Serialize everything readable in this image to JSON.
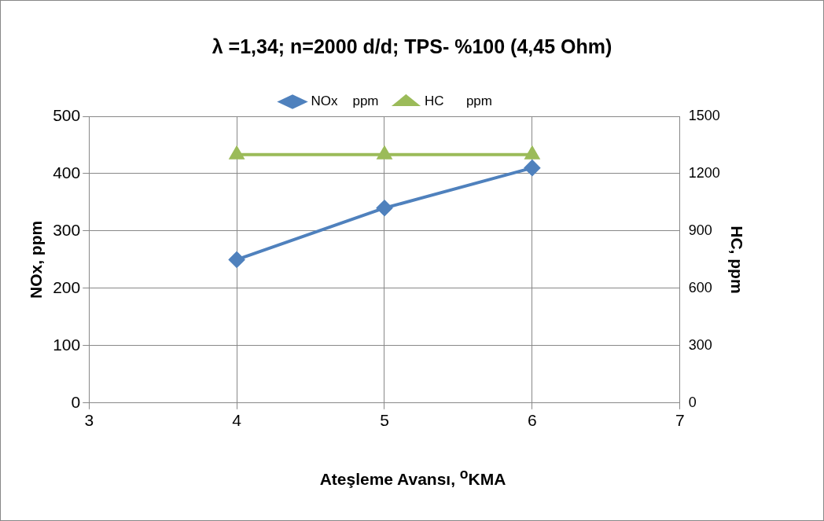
{
  "chart_data": {
    "type": "line",
    "title": "λ =1,34; n=2000 d/d; TPS- %100 (4,45 Ohm)",
    "xlabel": "Ateşleme Avansı, $^{o}$KMA",
    "ylabel": "NOx, ppm",
    "y2label": "HC, ppm",
    "x": [
      4,
      5,
      6
    ],
    "xlim": [
      3,
      7
    ],
    "xticks": [
      3,
      4,
      5,
      6,
      7
    ],
    "ylim": [
      0,
      500
    ],
    "yticks": [
      0,
      100,
      200,
      300,
      400,
      500
    ],
    "y2lim": [
      0,
      1500
    ],
    "y2ticks": [
      0,
      300,
      600,
      900,
      1200,
      1500
    ],
    "series": [
      {
        "name": "NOx    ppm",
        "color": "#4f81bd",
        "values": [
          250,
          340,
          410
        ],
        "marker": "diamond"
      },
      {
        "name": "HC      ppm",
        "color": "#9bbb59",
        "values": [
          1300,
          1300,
          1300
        ],
        "marker": "triangle",
        "axis": "y2"
      }
    ],
    "grid": true,
    "legend": "top",
    "line_style": "solid"
  }
}
